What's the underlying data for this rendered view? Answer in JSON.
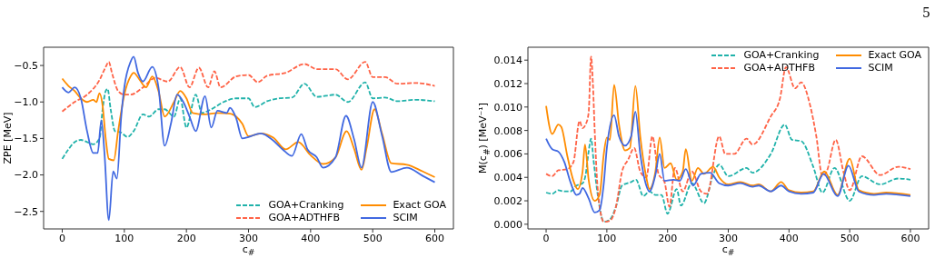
{
  "chart_data": [
    {
      "type": "line",
      "xlabel": "c$_{#}$",
      "ylabel": "ZPE [MeV]",
      "xlim": [
        -30,
        630
      ],
      "ylim": [
        -2.74,
        -0.25
      ],
      "xticks": [
        0,
        100,
        200,
        300,
        400,
        500,
        600
      ],
      "yticks": [
        {
          "value": -2.5,
          "label": "−2.5"
        },
        {
          "value": -2.0,
          "label": "−2.0"
        },
        {
          "value": -1.5,
          "label": "−1.5"
        },
        {
          "value": -1.0,
          "label": "−1.0"
        },
        {
          "value": -0.5,
          "label": "−0.5"
        }
      ],
      "legend": "lower right",
      "series": [
        {
          "name": "GOA+Cranking",
          "color": "#20b2aa",
          "line_style": "dashed",
          "x": [
            0,
            10,
            20,
            30,
            40,
            50,
            60,
            65,
            70,
            73,
            78,
            85,
            95,
            105,
            115,
            130,
            140,
            155,
            165,
            180,
            190,
            200,
            215,
            225,
            240,
            260,
            280,
            300,
            310,
            330,
            350,
            370,
            390,
            410,
            440,
            460,
            488,
            500,
            520,
            540,
            570,
            600
          ],
          "values": [
            -1.78,
            -1.65,
            -1.55,
            -1.52,
            -1.55,
            -1.58,
            -1.5,
            -1.1,
            -0.85,
            -0.82,
            -1.1,
            -1.4,
            -1.42,
            -1.48,
            -1.4,
            -1.17,
            -1.2,
            -1.1,
            -1.1,
            -1.2,
            -0.95,
            -1.35,
            -0.9,
            -1.15,
            -1.1,
            -1.0,
            -0.95,
            -0.95,
            -1.07,
            -0.99,
            -0.95,
            -0.94,
            -0.75,
            -0.93,
            -0.9,
            -1.0,
            -0.73,
            -0.95,
            -0.94,
            -0.99,
            -0.97,
            -0.99
          ]
        },
        {
          "name": "GOA+ADTHFB",
          "color": "#ff6347",
          "line_style": "dashed",
          "x": [
            0,
            20,
            40,
            60,
            70,
            75,
            80,
            90,
            100,
            110,
            130,
            150,
            170,
            190,
            205,
            220,
            235,
            245,
            255,
            280,
            300,
            315,
            330,
            360,
            390,
            410,
            440,
            460,
            488,
            500,
            520,
            540,
            570,
            600
          ],
          "values": [
            -1.13,
            -1.0,
            -0.9,
            -0.7,
            -0.52,
            -0.45,
            -0.6,
            -0.85,
            -0.9,
            -0.9,
            -0.8,
            -0.67,
            -0.72,
            -0.52,
            -0.8,
            -0.53,
            -0.8,
            -0.58,
            -0.8,
            -0.65,
            -0.63,
            -0.73,
            -0.64,
            -0.6,
            -0.48,
            -0.55,
            -0.55,
            -0.69,
            -0.45,
            -0.66,
            -0.66,
            -0.75,
            -0.74,
            -0.78
          ]
        },
        {
          "name": "Exact GOA",
          "color": "#ff8c00",
          "line_style": "solid",
          "x": [
            0,
            10,
            20,
            30,
            40,
            50,
            55,
            60,
            65,
            70,
            75,
            83,
            90,
            100,
            110,
            115,
            125,
            135,
            145,
            155,
            165,
            180,
            190,
            200,
            210,
            230,
            250,
            270,
            280,
            290,
            300,
            320,
            340,
            360,
            380,
            400,
            420,
            440,
            458,
            470,
            482,
            490,
            503,
            515,
            530,
            555,
            580,
            600
          ],
          "values": [
            -0.68,
            -0.78,
            -0.85,
            -0.95,
            -1.0,
            -0.97,
            -1.0,
            -0.88,
            -1.05,
            -1.5,
            -1.78,
            -1.8,
            -1.4,
            -0.9,
            -0.65,
            -0.6,
            -0.7,
            -0.8,
            -0.65,
            -0.85,
            -1.2,
            -1.0,
            -0.85,
            -0.95,
            -1.15,
            -1.17,
            -1.15,
            -1.16,
            -1.2,
            -1.3,
            -1.47,
            -1.43,
            -1.49,
            -1.65,
            -1.55,
            -1.73,
            -1.85,
            -1.76,
            -1.4,
            -1.64,
            -1.93,
            -1.64,
            -1.1,
            -1.43,
            -1.84,
            -1.86,
            -1.95,
            -2.03
          ]
        },
        {
          "name": "SCIM",
          "color": "#4169e1",
          "line_style": "solid",
          "x": [
            0,
            10,
            20,
            30,
            40,
            50,
            57,
            63,
            68,
            75,
            82,
            88,
            95,
            100,
            110,
            115,
            122,
            130,
            145,
            155,
            165,
            175,
            185,
            195,
            205,
            215,
            230,
            240,
            250,
            265,
            270,
            280,
            290,
            300,
            320,
            340,
            355,
            370,
            385,
            395,
            410,
            420,
            440,
            457,
            470,
            482,
            500,
            515,
            530,
            555,
            580,
            600
          ],
          "values": [
            -0.8,
            -0.87,
            -0.8,
            -0.95,
            -1.4,
            -1.7,
            -1.7,
            -1.25,
            -1.7,
            -2.62,
            -1.95,
            -2.05,
            -1.2,
            -0.8,
            -0.45,
            -0.38,
            -0.6,
            -0.72,
            -0.52,
            -0.8,
            -1.6,
            -1.3,
            -0.9,
            -1.0,
            -1.2,
            -1.4,
            -0.92,
            -1.35,
            -1.12,
            -1.15,
            -1.08,
            -1.22,
            -1.5,
            -1.48,
            -1.43,
            -1.53,
            -1.65,
            -1.74,
            -1.44,
            -1.65,
            -1.76,
            -1.9,
            -1.76,
            -1.19,
            -1.51,
            -1.9,
            -1.0,
            -1.46,
            -1.96,
            -1.9,
            -2.01,
            -2.1
          ]
        }
      ]
    },
    {
      "type": "line",
      "xlabel": "c$_{#}$",
      "ylabel": "M(c$_{#}$) [MeV⁻¹]",
      "xlim": [
        -30,
        630
      ],
      "ylim": [
        -0.0004,
        0.0151
      ],
      "xticks": [
        0,
        100,
        200,
        300,
        400,
        500,
        600
      ],
      "yticks": [
        {
          "value": 0,
          "label": "0.000"
        },
        {
          "value": 0.002,
          "label": "0.002"
        },
        {
          "value": 0.004,
          "label": "0.004"
        },
        {
          "value": 0.006,
          "label": "0.006"
        },
        {
          "value": 0.008,
          "label": "0.008"
        },
        {
          "value": 0.01,
          "label": "0.010"
        },
        {
          "value": 0.012,
          "label": "0.012"
        },
        {
          "value": 0.014,
          "label": "0.014"
        }
      ],
      "legend": "upper right",
      "annotations": [
        "5"
      ],
      "series": [
        {
          "name": "GOA+Cranking",
          "color": "#20b2aa",
          "line_style": "dashed",
          "x": [
            0,
            10,
            20,
            30,
            40,
            50,
            60,
            65,
            70,
            74,
            78,
            85,
            95,
            105,
            115,
            125,
            140,
            148,
            160,
            170,
            180,
            190,
            200,
            215,
            222,
            240,
            260,
            275,
            285,
            300,
            330,
            340,
            370,
            393,
            405,
            420,
            440,
            455,
            475,
            500,
            520,
            550,
            580,
            600
          ],
          "values": [
            0.0027,
            0.0026,
            0.0029,
            0.0028,
            0.0028,
            0.0033,
            0.0035,
            0.0042,
            0.0062,
            0.0073,
            0.0055,
            0.0025,
            0.0002,
            0.0004,
            0.0015,
            0.0033,
            0.0036,
            0.0038,
            0.0024,
            0.0028,
            0.0025,
            0.0025,
            0.0009,
            0.003,
            0.0016,
            0.0035,
            0.0018,
            0.0042,
            0.0051,
            0.0041,
            0.0048,
            0.0044,
            0.006,
            0.0085,
            0.0072,
            0.0071,
            0.0049,
            0.0027,
            0.0048,
            0.002,
            0.0041,
            0.0034,
            0.0039,
            0.0038
          ]
        },
        {
          "name": "GOA+ADTHFB",
          "color": "#ff6347",
          "line_style": "dashed",
          "x": [
            0,
            10,
            20,
            35,
            45,
            55,
            60,
            65,
            70,
            74,
            77,
            80,
            85,
            95,
            105,
            115,
            125,
            135,
            145,
            155,
            165,
            175,
            185,
            195,
            203,
            212,
            225,
            240,
            255,
            265,
            285,
            295,
            310,
            330,
            340,
            370,
            385,
            395,
            410,
            420,
            435,
            445,
            455,
            462,
            477,
            490,
            500,
            520,
            550,
            580,
            600
          ],
          "values": [
            0.0043,
            0.0041,
            0.0046,
            0.0047,
            0.0053,
            0.0088,
            0.0082,
            0.0085,
            0.0095,
            0.0143,
            0.012,
            0.008,
            0.003,
            0.0002,
            0.0003,
            0.0015,
            0.0045,
            0.0055,
            0.0065,
            0.0045,
            0.004,
            0.0075,
            0.0043,
            0.0036,
            0.0015,
            0.0048,
            0.0028,
            0.0045,
            0.0028,
            0.0026,
            0.0075,
            0.006,
            0.006,
            0.0073,
            0.0068,
            0.0092,
            0.0107,
            0.0134,
            0.0116,
            0.0121,
            0.0101,
            0.0075,
            0.0041,
            0.0045,
            0.0072,
            0.0044,
            0.0029,
            0.0058,
            0.0042,
            0.0049,
            0.0047
          ]
        },
        {
          "name": "Exact GOA",
          "color": "#ff8c00",
          "line_style": "solid",
          "x": [
            0,
            10,
            20,
            25,
            35,
            45,
            52,
            60,
            64,
            70,
            80,
            88,
            95,
            100,
            105,
            112,
            120,
            130,
            138,
            147,
            155,
            165,
            170,
            180,
            187,
            195,
            205,
            215,
            225,
            230,
            240,
            250,
            260,
            275,
            285,
            300,
            320,
            340,
            350,
            370,
            387,
            400,
            420,
            440,
            458,
            480,
            500,
            515,
            540,
            560,
            600
          ],
          "values": [
            0.0101,
            0.0077,
            0.0085,
            0.0083,
            0.0058,
            0.0037,
            0.003,
            0.0045,
            0.0068,
            0.0038,
            0.002,
            0.0025,
            0.006,
            0.0074,
            0.0072,
            0.0119,
            0.0085,
            0.0063,
            0.0065,
            0.0118,
            0.0075,
            0.004,
            0.003,
            0.0045,
            0.0074,
            0.0048,
            0.0052,
            0.0038,
            0.0045,
            0.0064,
            0.0037,
            0.0048,
            0.0043,
            0.0049,
            0.004,
            0.0034,
            0.0036,
            0.0033,
            0.0034,
            0.0028,
            0.0036,
            0.0029,
            0.0027,
            0.0028,
            0.0045,
            0.0025,
            0.0056,
            0.0029,
            0.0026,
            0.0027,
            0.0025
          ]
        },
        {
          "name": "SCIM",
          "color": "#4169e1",
          "line_style": "solid",
          "x": [
            0,
            10,
            20,
            30,
            40,
            50,
            55,
            60,
            70,
            80,
            88,
            95,
            100,
            112,
            120,
            130,
            140,
            147,
            155,
            165,
            170,
            180,
            187,
            195,
            210,
            220,
            230,
            242,
            255,
            270,
            285,
            300,
            320,
            340,
            350,
            370,
            387,
            400,
            420,
            440,
            457,
            480,
            498,
            515,
            540,
            560,
            600
          ],
          "values": [
            0.0073,
            0.0064,
            0.0062,
            0.0053,
            0.0036,
            0.0025,
            0.0026,
            0.0031,
            0.0022,
            0.001,
            0.0012,
            0.0035,
            0.0065,
            0.0093,
            0.0075,
            0.0067,
            0.0075,
            0.0096,
            0.006,
            0.0033,
            0.0028,
            0.0042,
            0.006,
            0.0037,
            0.0038,
            0.0037,
            0.0047,
            0.0033,
            0.0043,
            0.0044,
            0.0035,
            0.0033,
            0.0035,
            0.0032,
            0.0033,
            0.0028,
            0.0033,
            0.0028,
            0.0026,
            0.0027,
            0.0043,
            0.0024,
            0.005,
            0.0028,
            0.0025,
            0.0026,
            0.0024
          ]
        }
      ]
    }
  ]
}
